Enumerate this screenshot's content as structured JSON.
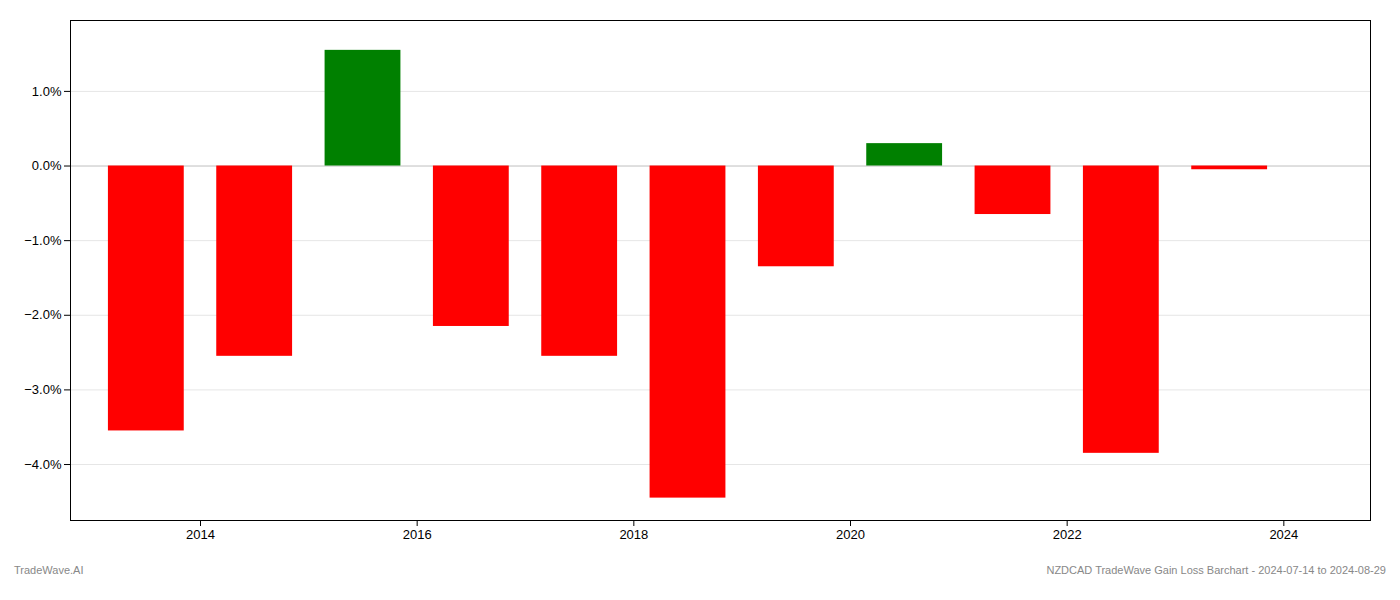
{
  "chart_data": {
    "type": "bar",
    "x": [
      2013.5,
      2014.5,
      2015.5,
      2016.5,
      2017.5,
      2018.5,
      2019.5,
      2020.5,
      2021.5,
      2022.5,
      2023.5
    ],
    "values": [
      -3.55,
      -2.55,
      1.55,
      -2.15,
      -2.55,
      -4.45,
      -1.35,
      0.3,
      -0.65,
      -3.85,
      -0.05
    ],
    "colors": [
      "#ff0000",
      "#ff0000",
      "#008000",
      "#ff0000",
      "#ff0000",
      "#ff0000",
      "#ff0000",
      "#008000",
      "#ff0000",
      "#ff0000",
      "#ff0000"
    ],
    "xlim": [
      2012.8,
      2024.8
    ],
    "xticks": [
      2014,
      2016,
      2018,
      2020,
      2022,
      2024
    ],
    "ylim": [
      -4.75,
      1.95
    ],
    "yticks": [
      {
        "value": -4.0,
        "label": "−4.0%"
      },
      {
        "value": -3.0,
        "label": "−3.0%"
      },
      {
        "value": -2.0,
        "label": "−2.0%"
      },
      {
        "value": -1.0,
        "label": "−1.0%"
      },
      {
        "value": 0.0,
        "label": "0.0%"
      },
      {
        "value": 1.0,
        "label": "1.0%"
      }
    ],
    "grid": "y",
    "annotations": [
      "TradeWave.AI",
      "NZDCAD TradeWave Gain Loss Barchart - 2024-07-14 to 2024-08-29"
    ]
  }
}
